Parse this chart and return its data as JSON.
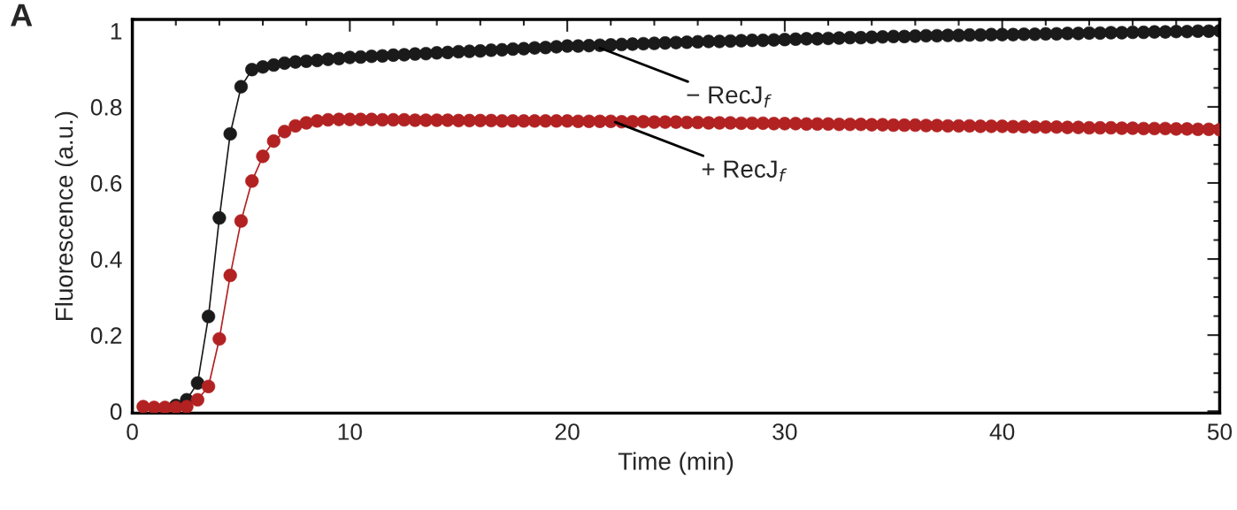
{
  "chart_data": {
    "type": "line",
    "xlabel": "Time (min)",
    "ylabel": "Fluorescence (a.u.)",
    "x": [
      0.5,
      1,
      1.5,
      2,
      2.5,
      3,
      3.5,
      4,
      4.5,
      5,
      5.5,
      6,
      6.5,
      7,
      7.5,
      8,
      8.5,
      9,
      9.5,
      10,
      10.5,
      11,
      11.5,
      12,
      12.5,
      13,
      13.5,
      14,
      14.5,
      15,
      15.5,
      16,
      16.5,
      17,
      17.5,
      18,
      18.5,
      19,
      19.5,
      20,
      20.5,
      21,
      21.5,
      22,
      22.5,
      23,
      23.5,
      24,
      24.5,
      25,
      25.5,
      26,
      26.5,
      27,
      27.5,
      28,
      28.5,
      29,
      29.5,
      30,
      30.5,
      31,
      31.5,
      32,
      32.5,
      33,
      33.5,
      34,
      34.5,
      35,
      35.5,
      36,
      36.5,
      37,
      37.5,
      38,
      38.5,
      39,
      39.5,
      40,
      40.5,
      41,
      41.5,
      42,
      42.5,
      43,
      43.5,
      44,
      44.5,
      45,
      45.5,
      46,
      46.5,
      47,
      47.5,
      48,
      48.5,
      49,
      49.5,
      50
    ],
    "series": [
      {
        "color": "#1a1a1a",
        "values": [
          null,
          null,
          null,
          0.015,
          0.03,
          0.074,
          0.249,
          0.508,
          0.729,
          0.853,
          0.898,
          0.905,
          0.91,
          0.915,
          0.918,
          0.92,
          0.922,
          0.925,
          0.927,
          0.93,
          0.931,
          0.933,
          0.934,
          0.936,
          0.937,
          0.939,
          0.94,
          0.942,
          0.943,
          0.945,
          0.946,
          0.947,
          0.949,
          0.95,
          0.952,
          0.953,
          0.955,
          0.956,
          0.958,
          0.96,
          0.96,
          0.961,
          0.962,
          0.963,
          0.964,
          0.965,
          0.966,
          0.967,
          0.968,
          0.969,
          0.97,
          0.971,
          0.972,
          0.972,
          0.973,
          0.974,
          0.975,
          0.975,
          0.976,
          0.977,
          0.978,
          0.979,
          0.979,
          0.98,
          0.981,
          0.982,
          0.982,
          0.983,
          0.984,
          0.985,
          0.985,
          0.986,
          0.987,
          0.987,
          0.988,
          0.988,
          0.989,
          0.989,
          0.99,
          0.99,
          0.99,
          0.991,
          0.991,
          0.992,
          0.992,
          0.993,
          0.993,
          0.994,
          0.994,
          0.995,
          0.995,
          0.996,
          0.996,
          0.997,
          0.997,
          0.998,
          0.998,
          0.999,
          0.999,
          1.0
        ]
      },
      {
        "color": "#b22222",
        "values": [
          0.012,
          0.01,
          0.01,
          0.01,
          0.012,
          0.03,
          0.065,
          0.19,
          0.357,
          0.5,
          0.605,
          0.67,
          0.71,
          0.735,
          0.75,
          0.758,
          0.763,
          0.766,
          0.767,
          0.767,
          0.767,
          0.767,
          0.766,
          0.766,
          0.766,
          0.765,
          0.765,
          0.765,
          0.765,
          0.764,
          0.764,
          0.764,
          0.764,
          0.763,
          0.763,
          0.763,
          0.763,
          0.763,
          0.763,
          0.763,
          0.762,
          0.762,
          0.762,
          0.762,
          0.761,
          0.761,
          0.761,
          0.76,
          0.76,
          0.76,
          0.759,
          0.759,
          0.758,
          0.758,
          0.758,
          0.757,
          0.757,
          0.757,
          0.756,
          0.756,
          0.756,
          0.755,
          0.755,
          0.755,
          0.754,
          0.754,
          0.754,
          0.753,
          0.753,
          0.752,
          0.752,
          0.752,
          0.751,
          0.751,
          0.75,
          0.75,
          0.75,
          0.749,
          0.749,
          0.749,
          0.748,
          0.748,
          0.747,
          0.747,
          0.747,
          0.746,
          0.746,
          0.745,
          0.745,
          0.745,
          0.744,
          0.744,
          0.743,
          0.743,
          0.743,
          0.742,
          0.742,
          0.741,
          0.741,
          0.74
        ]
      }
    ],
    "marker": "circle",
    "line_style": "solid",
    "grid": false,
    "legend": false,
    "xlim": [
      0,
      50
    ],
    "ylim": [
      -0.005,
      1.03
    ],
    "xticks": [
      0,
      {
        "value": 2,
        "label": null
      },
      {
        "value": 4,
        "label": null
      },
      {
        "value": 6,
        "label": null
      },
      {
        "value": 8,
        "label": null
      },
      10,
      {
        "value": 12,
        "label": null
      },
      {
        "value": 14,
        "label": null
      },
      {
        "value": 16,
        "label": null
      },
      {
        "value": 18,
        "label": null
      },
      20,
      {
        "value": 22,
        "label": null
      },
      {
        "value": 24,
        "label": null
      },
      {
        "value": 26,
        "label": null
      },
      {
        "value": 28,
        "label": null
      },
      30,
      {
        "value": 32,
        "label": null
      },
      {
        "value": 34,
        "label": null
      },
      {
        "value": 36,
        "label": null
      },
      {
        "value": 38,
        "label": null
      },
      40,
      {
        "value": 42,
        "label": null
      },
      {
        "value": 44,
        "label": null
      },
      {
        "value": 46,
        "label": null
      },
      {
        "value": 48,
        "label": null
      },
      50
    ],
    "yticks": [
      0,
      {
        "value": 0.05,
        "label": null
      },
      {
        "value": 0.1,
        "label": null
      },
      {
        "value": 0.15,
        "label": null
      },
      0.2,
      {
        "value": 0.25,
        "label": null
      },
      {
        "value": 0.3,
        "label": null
      },
      {
        "value": 0.35,
        "label": null
      },
      0.4,
      {
        "value": 0.45,
        "label": null
      },
      {
        "value": 0.5,
        "label": null
      },
      {
        "value": 0.55,
        "label": null
      },
      0.6,
      {
        "value": 0.65,
        "label": null
      },
      {
        "value": 0.7,
        "label": null
      },
      {
        "value": 0.75,
        "label": null
      },
      0.8,
      {
        "value": 0.85,
        "label": null
      },
      {
        "value": 0.9,
        "label": null
      },
      {
        "value": 0.95,
        "label": null
      },
      1
    ],
    "annotations": [
      "A",
      {
        "text": "− RecJ$_{f}$",
        "x": 21.5,
        "y": 0.955
      },
      {
        "text": "+ RecJ$_{f}$",
        "x": 22.2,
        "y": 0.76
      }
    ]
  }
}
